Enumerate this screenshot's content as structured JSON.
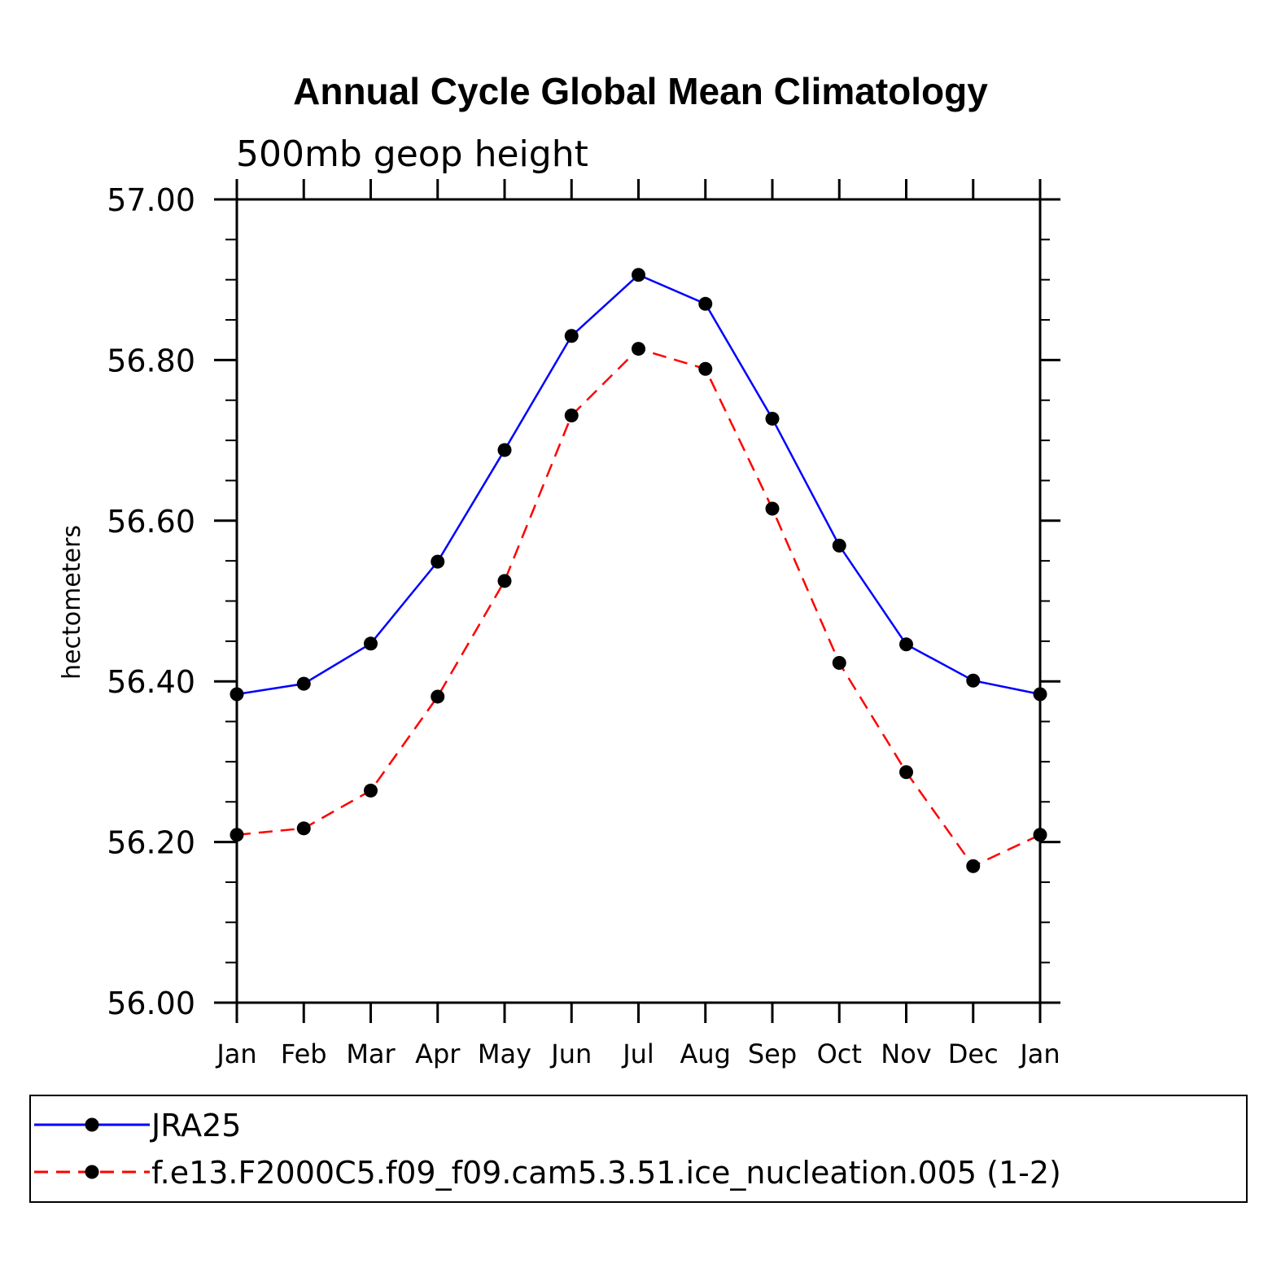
{
  "chart_data": {
    "type": "line",
    "title": "Annual Cycle Global Mean Climatology",
    "subtitle": "500mb geop height",
    "ylabel": "hectometers",
    "xlabel": "",
    "categories": [
      "Jan",
      "Feb",
      "Mar",
      "Apr",
      "May",
      "Jun",
      "Jul",
      "Aug",
      "Sep",
      "Oct",
      "Nov",
      "Dec",
      "Jan"
    ],
    "ylim": [
      56.0,
      57.0
    ],
    "y_ticks": [
      "56.00",
      "56.20",
      "56.40",
      "56.60",
      "56.80",
      "57.00"
    ],
    "series": [
      {
        "name": "JRA25",
        "color": "#0000ff",
        "line_style": "solid",
        "marker": "filled-circle",
        "values": [
          56.384,
          56.397,
          56.447,
          56.549,
          56.688,
          56.83,
          56.906,
          56.87,
          56.727,
          56.569,
          56.446,
          56.401,
          56.384
        ]
      },
      {
        "name": "f.e13.F2000C5.f09_f09.cam5.3.51.ice_nucleation.005 (1-2)",
        "color": "#ff0000",
        "line_style": "dashed",
        "marker": "filled-circle",
        "values": [
          56.209,
          56.217,
          56.264,
          56.381,
          56.525,
          56.731,
          56.814,
          56.789,
          56.615,
          56.423,
          56.287,
          56.17,
          56.209
        ]
      }
    ],
    "legend_position": "bottom",
    "grid": false
  }
}
